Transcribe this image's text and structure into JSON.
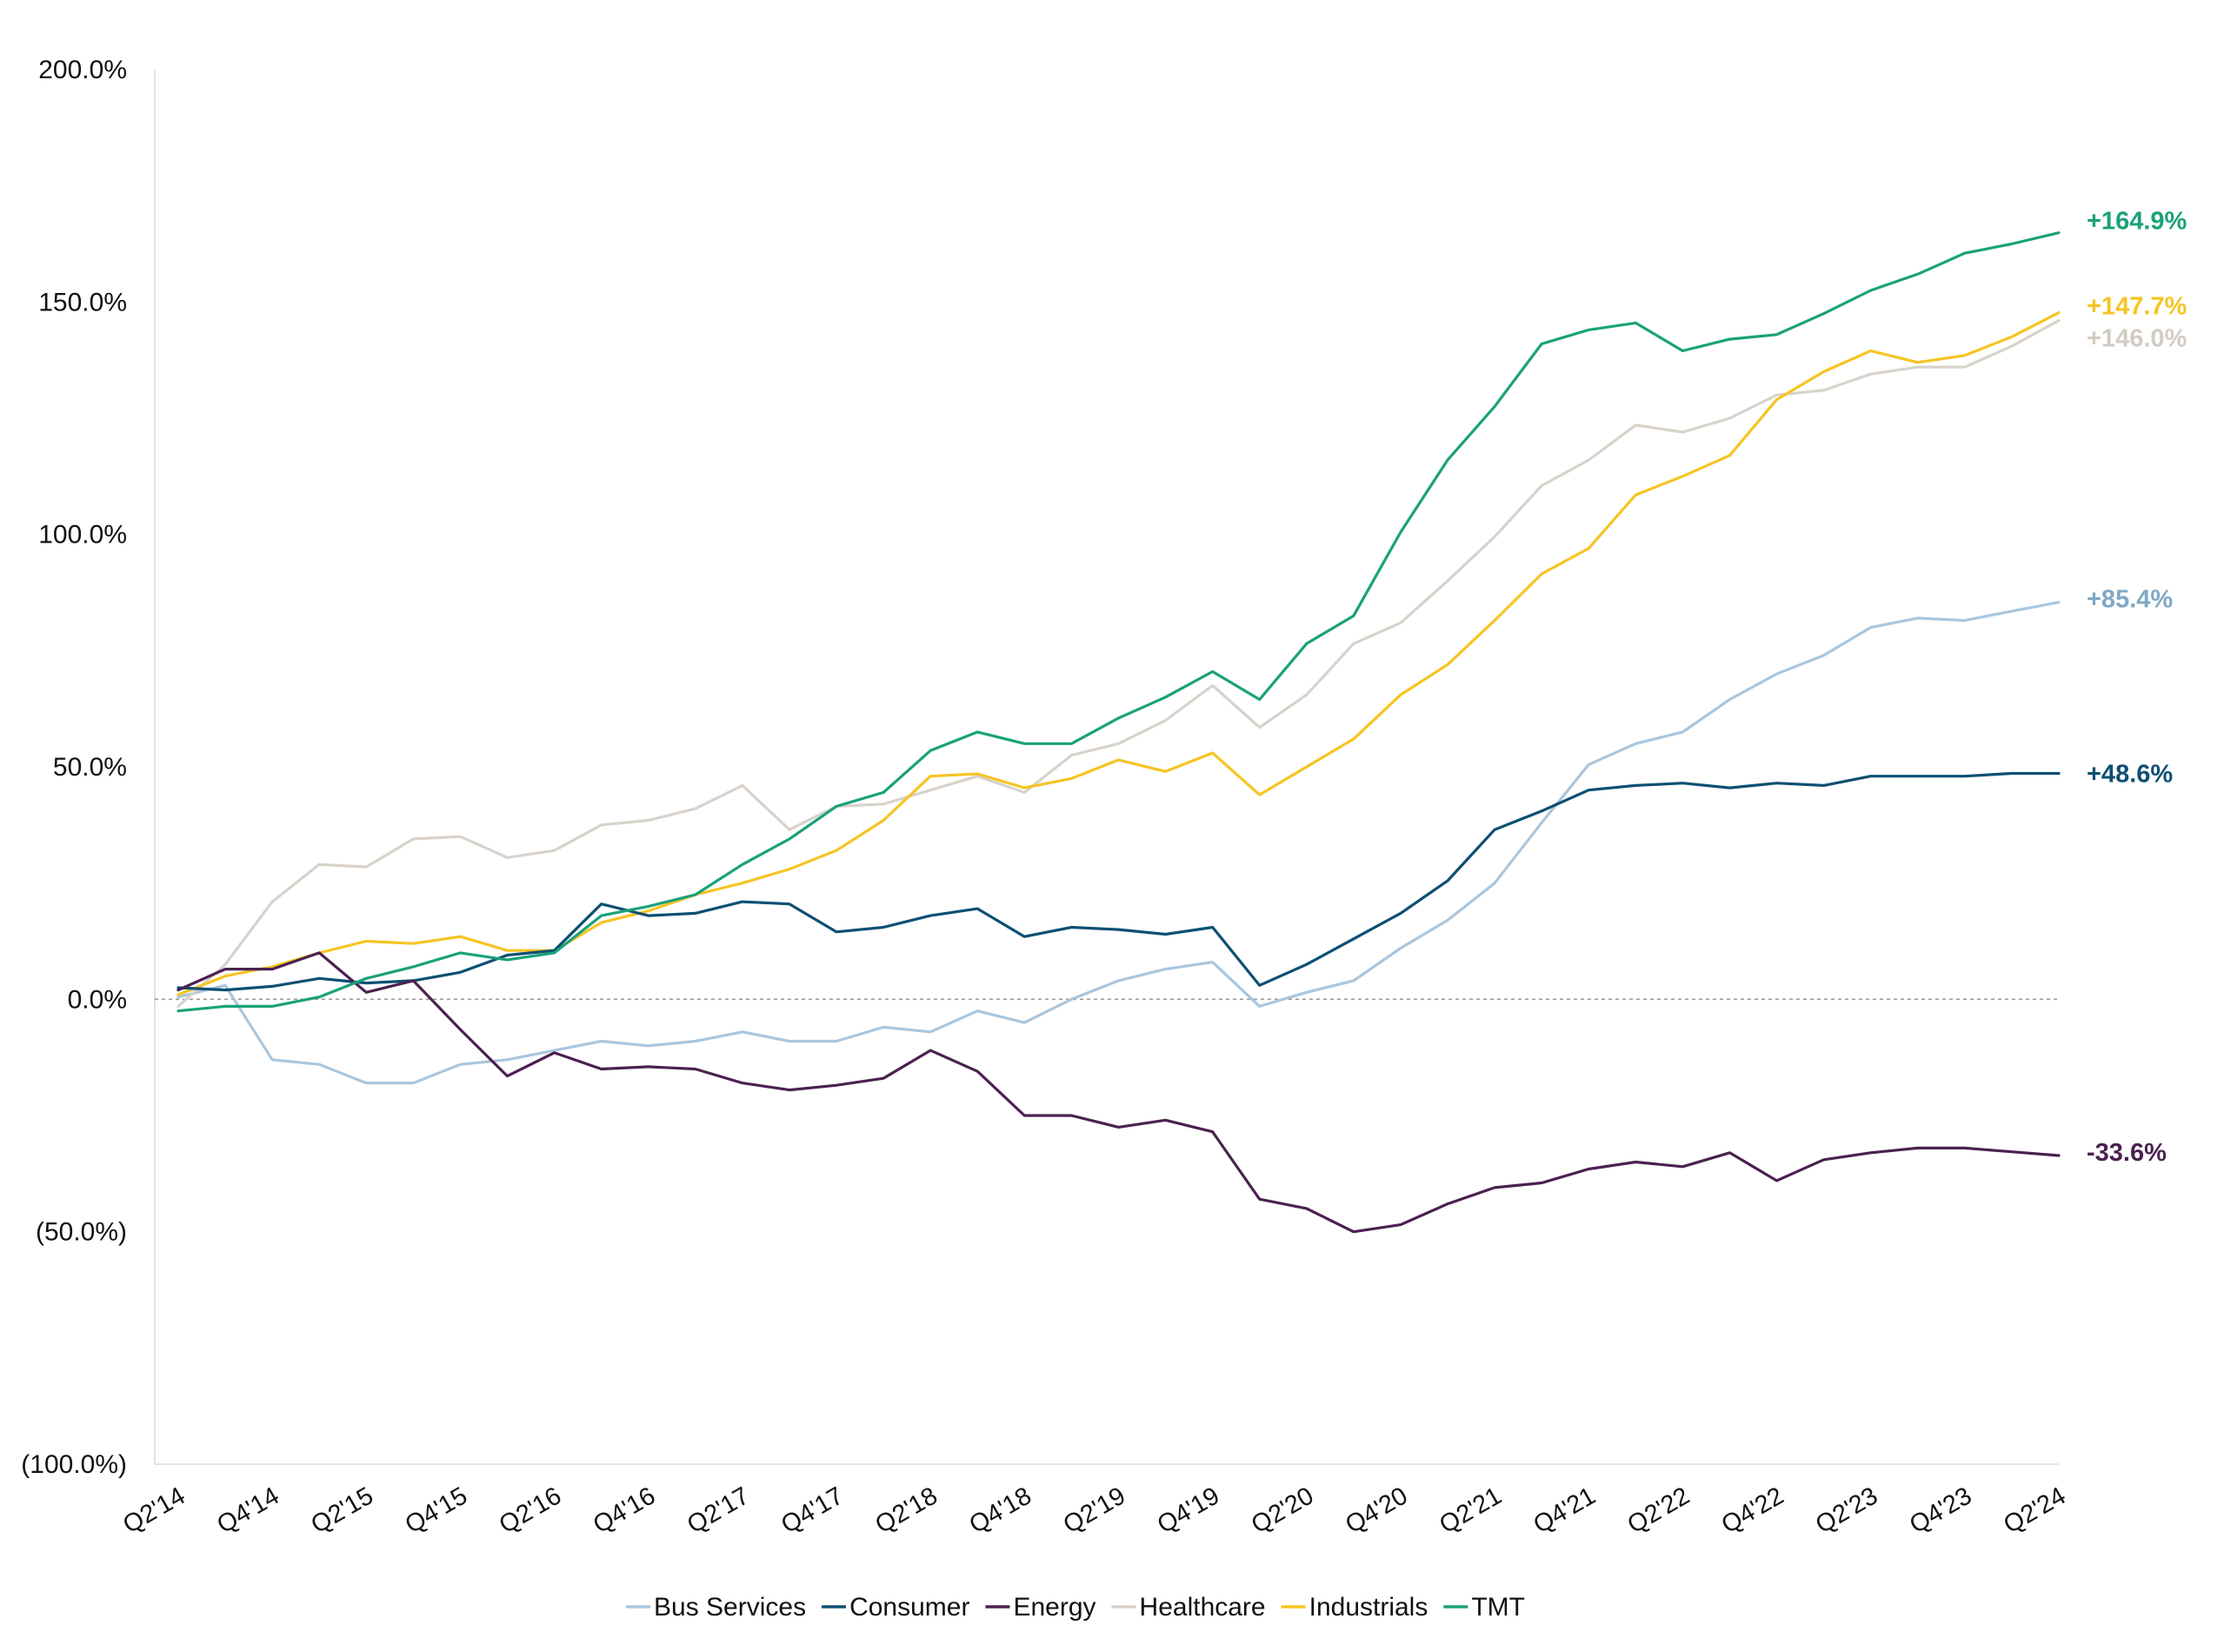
{
  "chart_data": {
    "type": "line",
    "title": "",
    "xlabel": "",
    "ylabel": "",
    "ylim": [
      -100,
      200
    ],
    "y_ticks": [
      {
        "value": 200,
        "label": "200.0%"
      },
      {
        "value": 150,
        "label": "150.0%"
      },
      {
        "value": 100,
        "label": "100.0%"
      },
      {
        "value": 50,
        "label": "50.0%"
      },
      {
        "value": 0,
        "label": "0.0%"
      },
      {
        "value": -50,
        "label": "(50.0%)"
      },
      {
        "value": -100,
        "label": "(100.0%)"
      }
    ],
    "x": [
      "Q2'14",
      "Q3'14",
      "Q4'14",
      "Q1'15",
      "Q2'15",
      "Q3'15",
      "Q4'15",
      "Q1'16",
      "Q2'16",
      "Q3'16",
      "Q4'16",
      "Q1'17",
      "Q2'17",
      "Q3'17",
      "Q4'17",
      "Q1'18",
      "Q2'18",
      "Q3'18",
      "Q4'18",
      "Q1'19",
      "Q2'19",
      "Q3'19",
      "Q4'19",
      "Q1'20",
      "Q2'20",
      "Q3'20",
      "Q4'20",
      "Q1'21",
      "Q2'21",
      "Q3'21",
      "Q4'21",
      "Q1'22",
      "Q2'22",
      "Q3'22",
      "Q4'22",
      "Q1'23",
      "Q2'23",
      "Q3'23",
      "Q4'23",
      "Q1'24",
      "Q2'24"
    ],
    "x_tick_labels": [
      "Q2'14",
      "Q4'14",
      "Q2'15",
      "Q4'15",
      "Q2'16",
      "Q4'16",
      "Q2'17",
      "Q4'17",
      "Q2'18",
      "Q4'18",
      "Q2'19",
      "Q4'19",
      "Q2'20",
      "Q4'20",
      "Q2'21",
      "Q4'21",
      "Q2'22",
      "Q4'22",
      "Q2'23",
      "Q4'23",
      "Q2'24"
    ],
    "zero_line": "dotted",
    "grid": false,
    "legend_position": "bottom-center",
    "series": [
      {
        "name": "Bus Services",
        "color": "#a9c6de",
        "end_label": "+85.4%",
        "values": [
          0.5,
          3,
          -13,
          -14,
          -18,
          -18,
          -14,
          -13,
          -11,
          -9,
          -10,
          -9,
          -7,
          -9,
          -9,
          -6,
          -7,
          -2.5,
          -5,
          0,
          4,
          6.5,
          8,
          -1.5,
          1.5,
          4,
          11,
          17,
          25,
          38,
          50.5,
          55,
          57.5,
          64.5,
          70,
          74,
          80,
          82,
          81.5,
          83.5,
          85.4
        ]
      },
      {
        "name": "Consumer",
        "color": "#0d4f73",
        "end_label": "+48.6%",
        "values": [
          2.5,
          2,
          2.8,
          4.5,
          3.5,
          4,
          5.8,
          9.5,
          10.5,
          20.5,
          18,
          18.5,
          21,
          20.5,
          14.5,
          15.5,
          18,
          19.5,
          13.5,
          15.5,
          15,
          14,
          15.5,
          3,
          7.5,
          13,
          18.5,
          25.5,
          36.5,
          40.5,
          45,
          46,
          46.5,
          45.5,
          46.5,
          46,
          48,
          48,
          48,
          48.6,
          48.6
        ]
      },
      {
        "name": "Energy",
        "color": "#4b2150",
        "end_label": "-33.6%",
        "values": [
          2,
          6.5,
          6.5,
          10,
          1.5,
          4,
          -6.5,
          -16.5,
          -11.5,
          -15,
          -14.5,
          -15,
          -18,
          -19.5,
          -18.5,
          -17,
          -11,
          -15.5,
          -25,
          -25,
          -27.5,
          -26,
          -28.5,
          -43,
          -45,
          -50,
          -48.5,
          -44,
          -40.5,
          -39.5,
          -36.5,
          -35,
          -36,
          -33,
          -39,
          -34.5,
          -33,
          -32,
          -32,
          -32.8,
          -33.6
        ]
      },
      {
        "name": "Healthcare",
        "color": "#d8d2cb",
        "end_label": "+146.0%",
        "values": [
          -1.5,
          7.5,
          21,
          29,
          28.5,
          34.5,
          35,
          30.5,
          32,
          37.5,
          38.5,
          41,
          46,
          36.5,
          41.5,
          42,
          45,
          48,
          44.5,
          52.5,
          55,
          60,
          67.5,
          58.5,
          65.5,
          76.5,
          81,
          90,
          99.5,
          110.5,
          116,
          123.5,
          122,
          125,
          130,
          131,
          134.5,
          136,
          136,
          140.5,
          146.0
        ]
      },
      {
        "name": "Industrials",
        "color": "#f6c423",
        "end_label": "+147.7%",
        "values": [
          1,
          5,
          7,
          10,
          12.5,
          12,
          13.5,
          10.5,
          10.5,
          16.5,
          19,
          22.5,
          25,
          28,
          32,
          38.5,
          48,
          48.5,
          45.5,
          47.5,
          51.5,
          49,
          53,
          44,
          50,
          56,
          65.5,
          72,
          81.5,
          91.5,
          97,
          108.5,
          112.5,
          117,
          129,
          135,
          139.5,
          137,
          138.5,
          142.5,
          147.7
        ]
      },
      {
        "name": "TMT",
        "color": "#1aa17a",
        "end_label": "+164.9%",
        "values": [
          -2.5,
          -1.5,
          -1.5,
          0.5,
          4.5,
          7,
          10,
          8.5,
          10,
          18,
          20,
          22.5,
          29,
          34.5,
          41.5,
          44.5,
          53.5,
          57.5,
          55,
          55,
          60.5,
          65,
          70.5,
          64.5,
          76.5,
          82.5,
          100.5,
          116,
          127.5,
          141,
          144,
          145.5,
          139.5,
          142,
          143,
          147.5,
          152.5,
          156,
          160.5,
          162.5,
          164.9
        ]
      }
    ]
  }
}
